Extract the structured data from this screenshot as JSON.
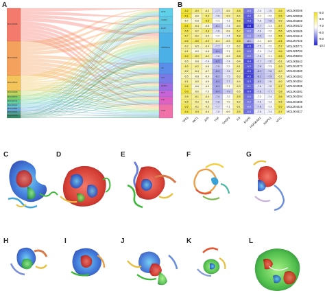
{
  "panels": {
    "A": "A",
    "B": "B",
    "C": "C",
    "D": "D",
    "E": "E",
    "F": "F",
    "G": "G",
    "H": "H",
    "I": "I",
    "J": "J",
    "K": "K",
    "L": "L"
  },
  "sankey": {
    "left_labels": [
      "MOL000098",
      "MOL000006",
      "MOL005542",
      "MOL004328",
      "MOL005573",
      "MOL002714",
      "MOL000422",
      "MOL004564",
      "MOL003044",
      "MOL002565"
    ],
    "right_labels": [
      "AKT1",
      "CASP3",
      "EGFR",
      "HSP90AA1",
      "IL6",
      "JUN",
      "MAPK1",
      "MYC",
      "TNF",
      "TP53"
    ]
  },
  "heatmap": {
    "molecules": [
      "MOL000006",
      "MOL000098",
      "MOL003359",
      "MOL000422",
      "MOL002605",
      "MOL001510",
      "MOL007645",
      "MOL005771",
      "MOL005782",
      "MOL005003",
      "MOL005542",
      "MOL004373",
      "MOL004380",
      "MOL004382",
      "MOL004384",
      "MOL004388",
      "MOL004391",
      "MOL004394",
      "MOL004398",
      "MOL004425",
      "MOL004427"
    ],
    "targets": [
      "TP53",
      "AKT1",
      "JUN",
      "TNF",
      "CASP3",
      "IL6",
      "EGFR",
      "HSP90AA1",
      "MAPK1",
      "MYC"
    ],
    "values": [
      [
        -5.2,
        -5.9,
        -6.3,
        -7.7,
        -6.5,
        -5.8,
        -8.9,
        -7.4,
        -7.5,
        -5.6
      ],
      [
        -5.1,
        -6.6,
        -5.9,
        -7.6,
        -6.3,
        -6.0,
        -9.2,
        -7.1,
        -7.2,
        -5.5
      ],
      [
        -6.7,
        -6.8,
        -5.5,
        -7.1,
        -7.3,
        -5.8,
        -9.3,
        -7.5,
        -7.8,
        -5.9
      ],
      [
        -5.1,
        -6.3,
        -6.8,
        -8.1,
        -7.4,
        -6.0,
        -9.8,
        -7.7,
        -7.3,
        -5.7
      ],
      [
        -5.5,
        -6.2,
        -5.8,
        -7.6,
        -6.8,
        -5.7,
        -8.8,
        -7.6,
        -7.2,
        -5.6
      ],
      [
        -5.7,
        -6.2,
        -6.5,
        -7.2,
        -7.4,
        -5.8,
        -8.6,
        -7.9,
        -7.3,
        -5.5
      ],
      [
        -5.6,
        -5.6,
        -5.9,
        -6.3,
        -6.5,
        -5.5,
        -8.1,
        -7.1,
        -6.9,
        -5.4
      ],
      [
        -6.2,
        -6.5,
        -6.4,
        -7.7,
        -7.2,
        -6.2,
        -9.5,
        -7.5,
        -7.2,
        -5.7
      ],
      [
        -6.1,
        -6.9,
        -6.8,
        -8.4,
        -7.1,
        -5.9,
        -9.0,
        -7.3,
        -7.4,
        -5.6
      ],
      [
        -5.4,
        -5.9,
        -6.2,
        -7.6,
        -6.9,
        -5.8,
        -8.9,
        -7.6,
        -7.1,
        -5.5
      ],
      [
        -6.5,
        -6.8,
        -7.4,
        -8.5,
        -7.4,
        -6.4,
        -9.4,
        -7.7,
        -7.6,
        -6.1
      ],
      [
        -6.0,
        -6.2,
        -6.8,
        -7.9,
        -7.2,
        -6.1,
        -9.2,
        -7.8,
        -7.3,
        -5.9
      ],
      [
        -6.2,
        -6.4,
        -6.7,
        -8.3,
        -7.6,
        -6.2,
        -9.5,
        -8.1,
        -7.8,
        -6.0
      ],
      [
        -6.5,
        -6.8,
        -6.9,
        -8.2,
        -7.5,
        -6.3,
        -9.6,
        -8.1,
        -7.9,
        -6.2
      ],
      [
        -6.1,
        -6.5,
        -6.9,
        -8.4,
        -7.7,
        -6.4,
        -9.3,
        -8.0,
        -7.6,
        -6.0
      ],
      [
        -5.6,
        -6.8,
        -6.9,
        -8.3,
        -7.1,
        -6.3,
        -9.1,
        -7.6,
        -7.5,
        -5.7
      ],
      [
        -5.3,
        -6.6,
        -7.0,
        -8.4,
        -7.9,
        -6.5,
        -9.4,
        -7.8,
        -7.7,
        -5.8
      ],
      [
        -5.9,
        -6.1,
        -6.4,
        -7.9,
        -7.2,
        -5.9,
        -9.0,
        -7.2,
        -7.4,
        -5.6
      ],
      [
        -5.8,
        -6.2,
        -6.6,
        -7.8,
        -7.0,
        -6.2,
        -8.9,
        -7.6,
        -7.3,
        -5.8
      ],
      [
        -5.5,
        -6.2,
        -6.5,
        -7.7,
        -7.1,
        -6.1,
        -8.8,
        -7.8,
        -7.3,
        -5.5
      ],
      [
        -5.4,
        -5.9,
        -6.4,
        -7.5,
        -6.9,
        -5.9,
        -9.0,
        -7.5,
        -7.4,
        -5.7
      ]
    ],
    "legend_ticks": [
      "-5.0",
      "-6.0",
      "-7.0",
      "-8.0",
      "-9.0",
      "-10.0"
    ],
    "vmin": -10.0,
    "vmax": -5.0
  },
  "colors": {
    "low_energy": "#1f1fd0",
    "mid_energy": "#ffffff",
    "high_energy": "#f0e020",
    "cell_border": "#9a9a9a"
  }
}
